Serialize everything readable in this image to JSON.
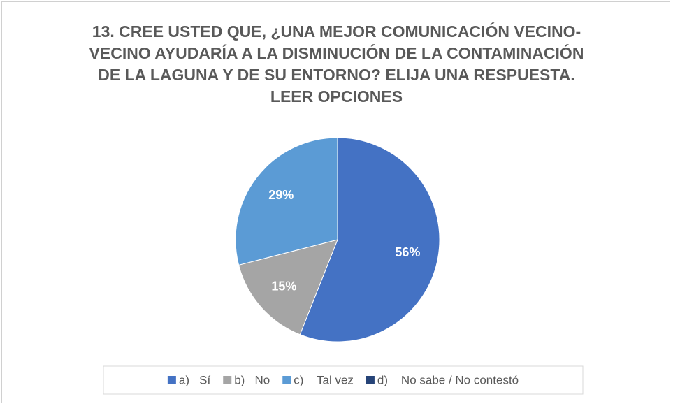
{
  "chart_data": {
    "type": "pie",
    "title": "13. CREE USTED QUE, ¿UNA MEJOR COMUNICACIÓN VECINO-VECINO AYUDARÍA A LA DISMINUCIÓN DE LA CONTAMINACIÓN DE LA LAGUNA Y DE SU ENTORNO?  ELIJA UNA RESPUESTA. LEER OPCIONES",
    "categories": [
      "a)   Sí",
      "b)   No",
      "c)    Tal vez",
      "d)    No sabe / No contestó"
    ],
    "values": [
      56,
      15,
      29,
      0
    ],
    "value_labels": [
      "56%",
      "15%",
      "29%",
      null
    ],
    "colors": [
      "#4472c4",
      "#a5a5a5",
      "#5b9bd5",
      "#264478"
    ],
    "legend": "bottom"
  }
}
